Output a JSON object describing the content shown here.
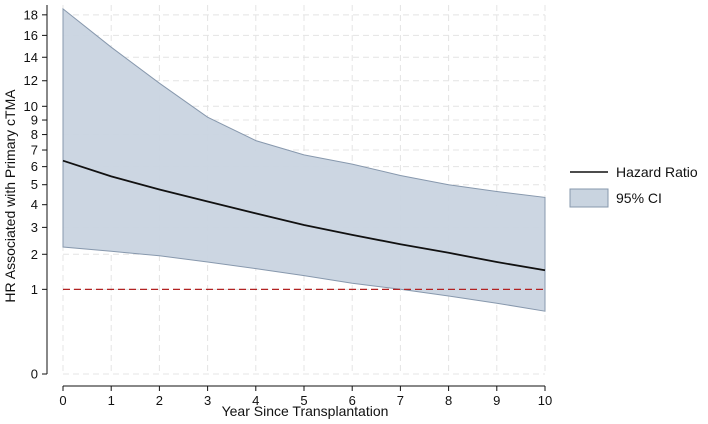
{
  "chart_data": {
    "type": "line",
    "xlabel": "Year Since Transplantation",
    "ylabel": "HR Associated with Primary cTMA",
    "xlim": [
      0,
      10
    ],
    "x_ticks": [
      0,
      1,
      2,
      3,
      4,
      5,
      6,
      7,
      8,
      9,
      10
    ],
    "y_ticks": [
      0,
      1,
      2,
      3,
      4,
      5,
      6,
      7,
      8,
      9,
      10,
      12,
      14,
      16,
      18
    ],
    "y_scale": "square-root",
    "grid": true,
    "legend_position": "right",
    "series": [
      {
        "name": "Hazard Ratio",
        "kind": "line",
        "color": "#111111",
        "x": [
          0,
          1,
          2,
          3,
          4,
          5,
          6,
          7,
          8,
          9,
          10
        ],
        "values": [
          6.35,
          5.45,
          4.75,
          4.15,
          3.6,
          3.1,
          2.7,
          2.35,
          2.05,
          1.75,
          1.5
        ]
      },
      {
        "name": "95% CI",
        "kind": "band",
        "color": "#c9d4e0",
        "edge_color": "#8798ad",
        "x": [
          0,
          1,
          2,
          3,
          4,
          5,
          6,
          7,
          8,
          9,
          10
        ],
        "lower": [
          2.25,
          2.1,
          1.95,
          1.75,
          1.55,
          1.35,
          1.15,
          1.0,
          0.85,
          0.7,
          0.55
        ],
        "upper": [
          18.6,
          14.9,
          11.8,
          9.2,
          7.6,
          6.7,
          6.15,
          5.5,
          5.0,
          4.65,
          4.35
        ]
      }
    ],
    "reference_line": {
      "y": 1,
      "color": "#b22222",
      "style": "dashed"
    }
  }
}
